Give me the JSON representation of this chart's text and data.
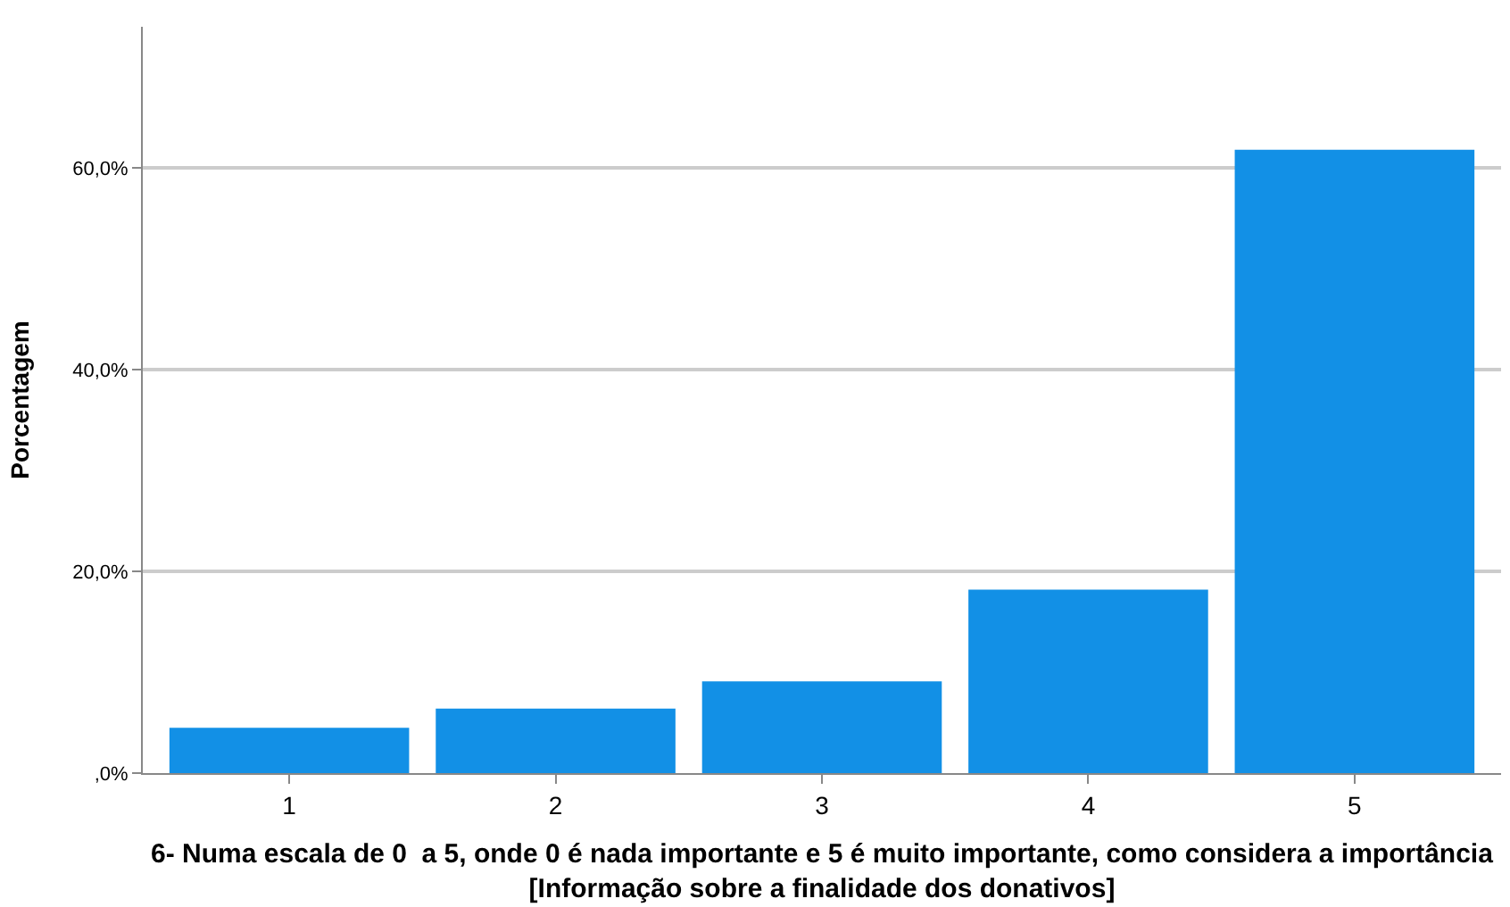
{
  "chart_data": {
    "type": "bar",
    "xlabel": "6- Numa escala de 0  a 5, onde 0 é nada importante e 5 é muito importante, como considera a importância [Informação sobre a finalidade dos donativos]",
    "ylabel": "Porcentagem",
    "categories": [
      "1",
      "2",
      "3",
      "4",
      "5"
    ],
    "values": [
      4.5,
      6.4,
      9.1,
      18.2,
      61.8
    ],
    "color": "#1290e6",
    "ylim": [
      0,
      74
    ],
    "yticks": [
      {
        "value": 0,
        "label": ",0%"
      },
      {
        "value": 20,
        "label": "20,0%"
      },
      {
        "value": 40,
        "label": "40,0%"
      },
      {
        "value": 60,
        "label": "60,0%"
      }
    ],
    "grid": "y"
  }
}
